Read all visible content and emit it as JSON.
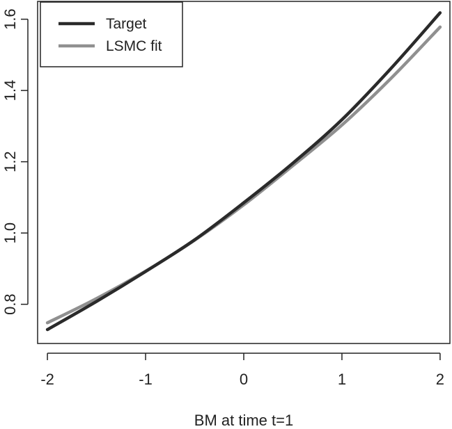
{
  "chart_data": {
    "type": "line",
    "title": "",
    "xlabel": "BM at time t=1",
    "ylabel": "",
    "xlim": [
      -2.1,
      2.1
    ],
    "ylim": [
      0.69,
      1.65
    ],
    "xticks": [
      {
        "value": -2,
        "label": "-2"
      },
      {
        "value": -1,
        "label": "-1"
      },
      {
        "value": 0,
        "label": "0"
      },
      {
        "value": 1,
        "label": "1"
      },
      {
        "value": 2,
        "label": "2"
      }
    ],
    "yticks": [
      {
        "value": 0.8,
        "label": "0.8"
      },
      {
        "value": 1.0,
        "label": "1.0"
      },
      {
        "value": 1.2,
        "label": "1.2"
      },
      {
        "value": 1.4,
        "label": "1.4"
      },
      {
        "value": 1.6,
        "label": "1.6"
      }
    ],
    "legend_position": "top-left",
    "grid": false,
    "series": [
      {
        "name": "Target",
        "color": "#2a2a2a",
        "x": [
          -2,
          -1.5,
          -1,
          -0.5,
          0,
          0.5,
          1,
          1.5,
          2
        ],
        "y": [
          0.729,
          0.808,
          0.892,
          0.981,
          1.085,
          1.196,
          1.318,
          1.462,
          1.618
        ]
      },
      {
        "name": "LSMC fit",
        "color": "#909090",
        "x": [
          -2,
          -1.5,
          -1,
          -0.5,
          0,
          0.5,
          1,
          1.5,
          2
        ],
        "y": [
          0.748,
          0.816,
          0.893,
          0.98,
          1.079,
          1.189,
          1.303,
          1.434,
          1.578
        ]
      }
    ]
  }
}
